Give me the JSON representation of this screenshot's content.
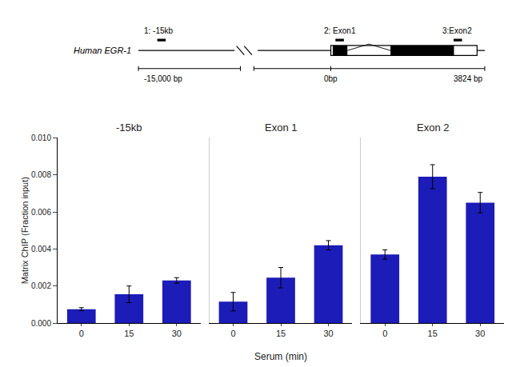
{
  "chart_data": [
    {
      "type": "bar",
      "title": "-15kb",
      "categories": [
        "0",
        "15",
        "30"
      ],
      "values": [
        0.00075,
        0.00155,
        0.0023
      ],
      "errors": [
        8e-05,
        0.00045,
        0.00015
      ],
      "color": "#1C1CB8",
      "ylabel": "Matrix ChIP (Fraction input)",
      "ylim": [
        0,
        0.01
      ],
      "yticks": [
        {
          "value": 0,
          "label": "0.000"
        },
        0.002,
        0.004,
        0.006,
        0.008,
        {
          "value": 0.01,
          "label": "0.010"
        }
      ],
      "grid": false,
      "annotations": [
        "Human EGR-1",
        "1: -15kb",
        "2: Exon1",
        "3:Exon2",
        "-15,000 bp",
        "0bp",
        "3824 bp"
      ]
    },
    {
      "type": "bar",
      "title": "Exon 1",
      "categories": [
        "0",
        "15",
        "30"
      ],
      "values": [
        0.00115,
        0.00245,
        0.0042
      ],
      "errors": [
        0.0005,
        0.00055,
        0.00025
      ],
      "color": "#1C1CB8",
      "xlabel": "Serum (min)",
      "ylim": [
        0,
        0.01
      ],
      "yticks": [
        {
          "value": 0,
          "label": "0.000"
        },
        0.002,
        0.004,
        0.006,
        0.008,
        {
          "value": 0.01,
          "label": "0.010"
        }
      ],
      "tick_labels": "x",
      "grid": false
    },
    {
      "type": "bar",
      "title": "Exon 2",
      "categories": [
        "0",
        "15",
        "30"
      ],
      "values": [
        0.0037,
        0.0079,
        0.0065
      ],
      "errors": [
        0.00025,
        0.00065,
        0.00055
      ],
      "color": "#1C1CB8",
      "ylim": [
        0,
        0.01
      ],
      "yticks": [
        {
          "value": 0,
          "label": "0.000"
        },
        0.002,
        0.004,
        0.006,
        0.008,
        {
          "value": 0.01,
          "label": "0.010"
        }
      ],
      "tick_labels": "x",
      "grid": false
    }
  ]
}
